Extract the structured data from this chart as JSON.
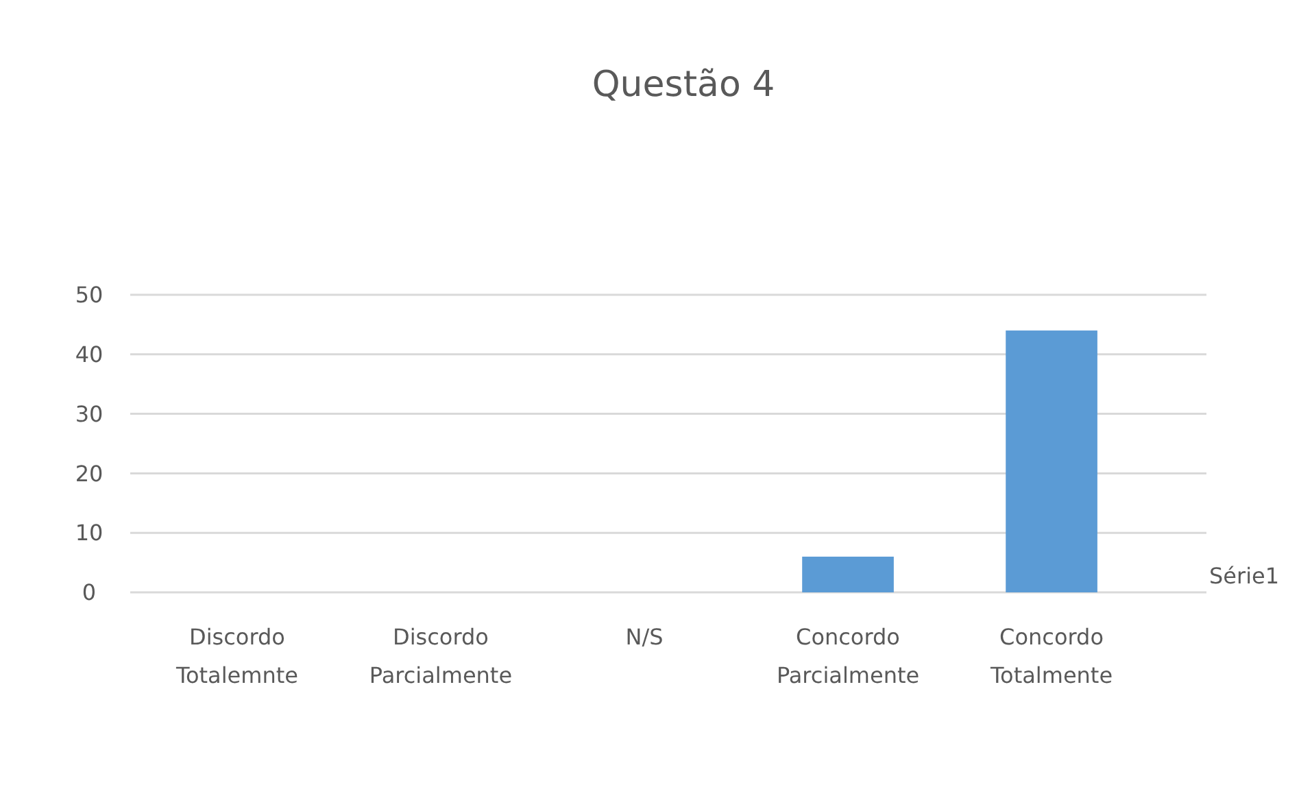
{
  "chart_data": {
    "type": "bar",
    "title": "Questão 4",
    "categories": [
      "Discordo Totalemnte",
      "Discordo Parcialmente",
      "N/S",
      "Concordo Parcialmente",
      "Concordo Totalmente"
    ],
    "series": [
      {
        "name": "Série1",
        "color": "#5b9bd5",
        "values": [
          0,
          0,
          0,
          6,
          44
        ]
      }
    ],
    "ylim": [
      0,
      50
    ],
    "yticks": [
      0,
      10,
      20,
      30,
      40,
      50
    ],
    "grid": "y"
  }
}
